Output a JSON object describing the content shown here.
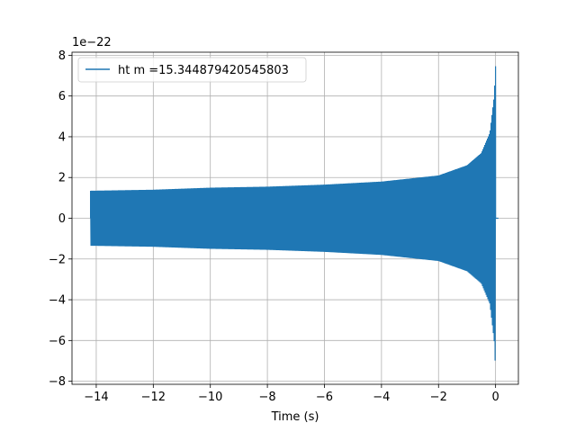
{
  "chart_data": {
    "type": "line",
    "title": "",
    "xlabel": "Time (s)",
    "ylabel": "",
    "y_offset_label": "1e−22",
    "xlim": [
      -14.85,
      0.8
    ],
    "ylim": [
      -8.15,
      8.15
    ],
    "grid": true,
    "legend_position": "upper-left",
    "x_ticks": [
      -14,
      -12,
      -10,
      -8,
      -6,
      -4,
      -2,
      0
    ],
    "x_tick_labels": [
      "−14",
      "−12",
      "−10",
      "−8",
      "−6",
      "−4",
      "−2",
      "0"
    ],
    "y_ticks": [
      -8,
      -6,
      -4,
      -2,
      0,
      2,
      4,
      6,
      8
    ],
    "y_tick_labels": [
      "−8",
      "−6",
      "−4",
      "−2",
      "0",
      "2",
      "4",
      "6",
      "8"
    ],
    "series": [
      {
        "name": "ht m =15.344879420545803",
        "color": "#1f77b4",
        "description": "oscillating chirp strain signal",
        "t_start": -14.2,
        "t_merger": 0.0,
        "t_end": 0.1,
        "envelope_t": [
          -14.2,
          -12,
          -10,
          -8,
          -6,
          -4,
          -2,
          -1,
          -0.5,
          -0.2,
          -0.05,
          0.0
        ],
        "envelope_amp": [
          1.35,
          1.4,
          1.5,
          1.55,
          1.65,
          1.8,
          2.1,
          2.6,
          3.2,
          4.2,
          6.0,
          7.5
        ]
      }
    ]
  }
}
